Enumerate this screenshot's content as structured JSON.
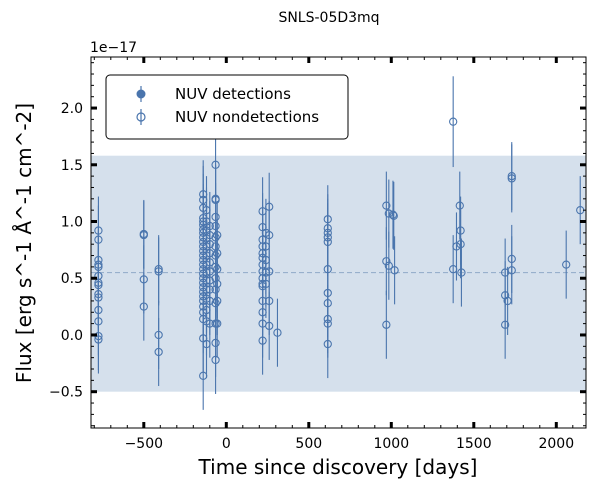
{
  "chart_data": {
    "type": "scatter",
    "title": "SNLS-05D3mq",
    "xlabel": "Time since discovery [days]",
    "ylabel": "Flux [erg s^-1 Å^-1 cm^-2]",
    "y_offset_label": "1e−17",
    "xlim": [
      -820,
      2180
    ],
    "ylim": [
      -0.82,
      2.45
    ],
    "x_ticks": [
      -500,
      0,
      500,
      1000,
      1500,
      2000
    ],
    "x_tick_labels": [
      "−500",
      "0",
      "500",
      "1000",
      "1500",
      "2000"
    ],
    "y_ticks": [
      -0.5,
      0.0,
      0.5,
      1.0,
      1.5,
      2.0
    ],
    "y_tick_labels": [
      "−0.5",
      "0.0",
      "0.5",
      "1.0",
      "1.5",
      "2.0"
    ],
    "band": {
      "y_min": -0.5,
      "y_max": 1.58,
      "color": "#c7d6e6"
    },
    "median_line": {
      "y": 0.55,
      "color": "#8fa9c8"
    },
    "marker_color": "#4a75ad",
    "legend": {
      "position": "top-left",
      "entries": [
        {
          "label": "NUV detections",
          "marker": "filled"
        },
        {
          "label": "NUV nondetections",
          "marker": "open"
        }
      ]
    },
    "series": [
      {
        "name": "NUV detections",
        "points": []
      },
      {
        "name": "NUV nondetections",
        "points": [
          {
            "x": -775,
            "y": 0.92,
            "err": 0.3
          },
          {
            "x": -775,
            "y": 0.84,
            "err": 0.3
          },
          {
            "x": -775,
            "y": 0.66,
            "err": 0.3
          },
          {
            "x": -775,
            "y": 0.62,
            "err": 0.3
          },
          {
            "x": -775,
            "y": 0.6,
            "err": 0.3
          },
          {
            "x": -775,
            "y": 0.52,
            "err": 0.3
          },
          {
            "x": -775,
            "y": 0.46,
            "err": 0.3
          },
          {
            "x": -775,
            "y": 0.44,
            "err": 0.3
          },
          {
            "x": -775,
            "y": 0.36,
            "err": 0.3
          },
          {
            "x": -775,
            "y": 0.33,
            "err": 0.3
          },
          {
            "x": -775,
            "y": 0.22,
            "err": 0.3
          },
          {
            "x": -775,
            "y": 0.12,
            "err": 0.3
          },
          {
            "x": -775,
            "y": -0.01,
            "err": 0.3
          },
          {
            "x": -775,
            "y": -0.04,
            "err": 0.3
          },
          {
            "x": -500,
            "y": 0.89,
            "err": 0.3
          },
          {
            "x": -500,
            "y": 0.88,
            "err": 0.3
          },
          {
            "x": -500,
            "y": 0.49,
            "err": 0.3
          },
          {
            "x": -500,
            "y": 0.25,
            "err": 0.3
          },
          {
            "x": -410,
            "y": 0.58,
            "err": 0.3
          },
          {
            "x": -410,
            "y": 0.56,
            "err": 0.3
          },
          {
            "x": -410,
            "y": 0.0,
            "err": 0.3
          },
          {
            "x": -410,
            "y": -0.15,
            "err": 0.3
          },
          {
            "x": -140,
            "y": 1.24,
            "err": 0.3
          },
          {
            "x": -140,
            "y": 1.19,
            "err": 0.3
          },
          {
            "x": -140,
            "y": 1.12,
            "err": 0.3
          },
          {
            "x": -140,
            "y": 1.03,
            "err": 0.3
          },
          {
            "x": -140,
            "y": 1.0,
            "err": 0.3
          },
          {
            "x": -140,
            "y": 0.97,
            "err": 0.3
          },
          {
            "x": -140,
            "y": 0.93,
            "err": 0.3
          },
          {
            "x": -140,
            "y": 0.9,
            "err": 0.3
          },
          {
            "x": -140,
            "y": 0.86,
            "err": 0.3
          },
          {
            "x": -140,
            "y": 0.82,
            "err": 0.3
          },
          {
            "x": -140,
            "y": 0.78,
            "err": 0.3
          },
          {
            "x": -140,
            "y": 0.74,
            "err": 0.3
          },
          {
            "x": -140,
            "y": 0.7,
            "err": 0.3
          },
          {
            "x": -140,
            "y": 0.66,
            "err": 0.3
          },
          {
            "x": -140,
            "y": 0.62,
            "err": 0.3
          },
          {
            "x": -140,
            "y": 0.58,
            "err": 0.3
          },
          {
            "x": -140,
            "y": 0.54,
            "err": 0.3
          },
          {
            "x": -140,
            "y": 0.5,
            "err": 0.3
          },
          {
            "x": -140,
            "y": 0.46,
            "err": 0.3
          },
          {
            "x": -140,
            "y": 0.42,
            "err": 0.3
          },
          {
            "x": -140,
            "y": 0.38,
            "err": 0.3
          },
          {
            "x": -140,
            "y": 0.34,
            "err": 0.3
          },
          {
            "x": -140,
            "y": 0.3,
            "err": 0.3
          },
          {
            "x": -140,
            "y": 0.25,
            "err": 0.3
          },
          {
            "x": -140,
            "y": 0.2,
            "err": 0.3
          },
          {
            "x": -140,
            "y": 0.14,
            "err": 0.3
          },
          {
            "x": -140,
            "y": -0.03,
            "err": 0.3
          },
          {
            "x": -140,
            "y": -0.36,
            "err": 0.3
          },
          {
            "x": -120,
            "y": 1.1,
            "err": 0.3
          },
          {
            "x": -120,
            "y": 1.0,
            "err": 0.3
          },
          {
            "x": -120,
            "y": 0.92,
            "err": 0.3
          },
          {
            "x": -120,
            "y": 0.85,
            "err": 0.3
          },
          {
            "x": -120,
            "y": 0.78,
            "err": 0.3
          },
          {
            "x": -120,
            "y": 0.7,
            "err": 0.3
          },
          {
            "x": -120,
            "y": 0.62,
            "err": 0.3
          },
          {
            "x": -120,
            "y": 0.55,
            "err": 0.3
          },
          {
            "x": -120,
            "y": 0.48,
            "err": 0.3
          },
          {
            "x": -120,
            "y": 0.4,
            "err": 0.3
          },
          {
            "x": -120,
            "y": 0.32,
            "err": 0.3
          },
          {
            "x": -120,
            "y": 0.22,
            "err": 0.3
          },
          {
            "x": -120,
            "y": 0.12,
            "err": 0.3
          },
          {
            "x": -120,
            "y": -0.08,
            "err": 0.3
          },
          {
            "x": -100,
            "y": 0.96,
            "err": 0.3
          },
          {
            "x": -100,
            "y": 0.88,
            "err": 0.3
          },
          {
            "x": -100,
            "y": 0.8,
            "err": 0.3
          },
          {
            "x": -100,
            "y": 0.72,
            "err": 0.3
          },
          {
            "x": -100,
            "y": 0.64,
            "err": 0.3
          },
          {
            "x": -100,
            "y": 0.56,
            "err": 0.3
          },
          {
            "x": -100,
            "y": 0.48,
            "err": 0.3
          },
          {
            "x": -100,
            "y": 0.4,
            "err": 0.3
          },
          {
            "x": -100,
            "y": 0.3,
            "err": 0.3
          },
          {
            "x": -100,
            "y": 0.1,
            "err": 0.3
          },
          {
            "x": -65,
            "y": 1.5,
            "err": 0.3
          },
          {
            "x": -65,
            "y": 1.2,
            "err": 0.3
          },
          {
            "x": -65,
            "y": 1.19,
            "err": 0.3
          },
          {
            "x": -65,
            "y": 1.04,
            "err": 0.3
          },
          {
            "x": -65,
            "y": 0.96,
            "err": 0.3
          },
          {
            "x": -65,
            "y": 0.86,
            "err": 0.3
          },
          {
            "x": -65,
            "y": 0.78,
            "err": 0.3
          },
          {
            "x": -65,
            "y": 0.7,
            "err": 0.3
          },
          {
            "x": -65,
            "y": 0.6,
            "err": 0.3
          },
          {
            "x": -65,
            "y": 0.5,
            "err": 0.3
          },
          {
            "x": -65,
            "y": 0.4,
            "err": 0.3
          },
          {
            "x": -65,
            "y": 0.28,
            "err": 0.3
          },
          {
            "x": -65,
            "y": 0.1,
            "err": 0.3
          },
          {
            "x": -65,
            "y": -0.07,
            "err": 0.3
          },
          {
            "x": -65,
            "y": -0.22,
            "err": 0.3
          },
          {
            "x": -55,
            "y": 0.88,
            "err": 0.3
          },
          {
            "x": -55,
            "y": 0.72,
            "err": 0.3
          },
          {
            "x": -55,
            "y": 0.58,
            "err": 0.3
          },
          {
            "x": -55,
            "y": 0.45,
            "err": 0.3
          },
          {
            "x": -55,
            "y": 0.3,
            "err": 0.3
          },
          {
            "x": -55,
            "y": 0.1,
            "err": 0.3
          },
          {
            "x": 220,
            "y": 1.09,
            "err": 0.3
          },
          {
            "x": 220,
            "y": 0.95,
            "err": 0.3
          },
          {
            "x": 220,
            "y": 0.84,
            "err": 0.3
          },
          {
            "x": 220,
            "y": 0.78,
            "err": 0.3
          },
          {
            "x": 220,
            "y": 0.72,
            "err": 0.3
          },
          {
            "x": 220,
            "y": 0.68,
            "err": 0.3
          },
          {
            "x": 220,
            "y": 0.62,
            "err": 0.3
          },
          {
            "x": 220,
            "y": 0.56,
            "err": 0.3
          },
          {
            "x": 220,
            "y": 0.5,
            "err": 0.3
          },
          {
            "x": 220,
            "y": 0.45,
            "err": 0.3
          },
          {
            "x": 220,
            "y": 0.43,
            "err": 0.3
          },
          {
            "x": 220,
            "y": 0.3,
            "err": 0.3
          },
          {
            "x": 220,
            "y": 0.2,
            "err": 0.3
          },
          {
            "x": 220,
            "y": 0.1,
            "err": 0.3
          },
          {
            "x": 220,
            "y": -0.05,
            "err": 0.3
          },
          {
            "x": 240,
            "y": 0.9,
            "err": 0.3
          },
          {
            "x": 240,
            "y": 0.78,
            "err": 0.3
          },
          {
            "x": 240,
            "y": 0.66,
            "err": 0.3
          },
          {
            "x": 240,
            "y": 0.55,
            "err": 0.3
          },
          {
            "x": 240,
            "y": 0.45,
            "err": 0.3
          },
          {
            "x": 260,
            "y": 1.13,
            "err": 0.3
          },
          {
            "x": 260,
            "y": 0.88,
            "err": 0.3
          },
          {
            "x": 260,
            "y": 0.56,
            "err": 0.3
          },
          {
            "x": 260,
            "y": 0.3,
            "err": 0.3
          },
          {
            "x": 260,
            "y": 0.08,
            "err": 0.3
          },
          {
            "x": 310,
            "y": 0.02,
            "err": 0.3
          },
          {
            "x": 615,
            "y": 1.02,
            "err": 0.3
          },
          {
            "x": 615,
            "y": 0.94,
            "err": 0.3
          },
          {
            "x": 615,
            "y": 0.9,
            "err": 0.3
          },
          {
            "x": 615,
            "y": 0.86,
            "err": 0.3
          },
          {
            "x": 615,
            "y": 0.82,
            "err": 0.3
          },
          {
            "x": 615,
            "y": 0.58,
            "err": 0.3
          },
          {
            "x": 615,
            "y": 0.37,
            "err": 0.3
          },
          {
            "x": 615,
            "y": 0.28,
            "err": 0.3
          },
          {
            "x": 615,
            "y": 0.14,
            "err": 0.3
          },
          {
            "x": 615,
            "y": 0.1,
            "err": 0.3
          },
          {
            "x": 615,
            "y": -0.08,
            "err": 0.3
          },
          {
            "x": 970,
            "y": 1.14,
            "err": 0.3
          },
          {
            "x": 970,
            "y": 0.65,
            "err": 0.3
          },
          {
            "x": 970,
            "y": 0.09,
            "err": 0.3
          },
          {
            "x": 985,
            "y": 1.07,
            "err": 0.3
          },
          {
            "x": 985,
            "y": 0.61,
            "err": 0.3
          },
          {
            "x": 1010,
            "y": 1.06,
            "err": 0.3
          },
          {
            "x": 1015,
            "y": 1.05,
            "err": 0.3
          },
          {
            "x": 1020,
            "y": 0.57,
            "err": 0.3
          },
          {
            "x": 1375,
            "y": 1.88,
            "err": 0.4
          },
          {
            "x": 1375,
            "y": 0.58,
            "err": 0.3
          },
          {
            "x": 1395,
            "y": 0.78,
            "err": 0.3
          },
          {
            "x": 1415,
            "y": 1.14,
            "err": 0.3
          },
          {
            "x": 1420,
            "y": 0.8,
            "err": 0.3
          },
          {
            "x": 1420,
            "y": 0.92,
            "err": 0.3
          },
          {
            "x": 1425,
            "y": 0.55,
            "err": 0.3
          },
          {
            "x": 1690,
            "y": 0.55,
            "err": 0.3
          },
          {
            "x": 1690,
            "y": 0.35,
            "err": 0.3
          },
          {
            "x": 1690,
            "y": 0.09,
            "err": 0.3
          },
          {
            "x": 1705,
            "y": 0.3,
            "err": 0.3
          },
          {
            "x": 1730,
            "y": 1.4,
            "err": 0.3
          },
          {
            "x": 1730,
            "y": 1.38,
            "err": 0.3
          },
          {
            "x": 1730,
            "y": 0.67,
            "err": 0.3
          },
          {
            "x": 1730,
            "y": 0.57,
            "err": 0.3
          },
          {
            "x": 2060,
            "y": 0.62,
            "err": 0.3
          },
          {
            "x": 2145,
            "y": 1.1,
            "err": 0.3
          }
        ]
      }
    ]
  }
}
